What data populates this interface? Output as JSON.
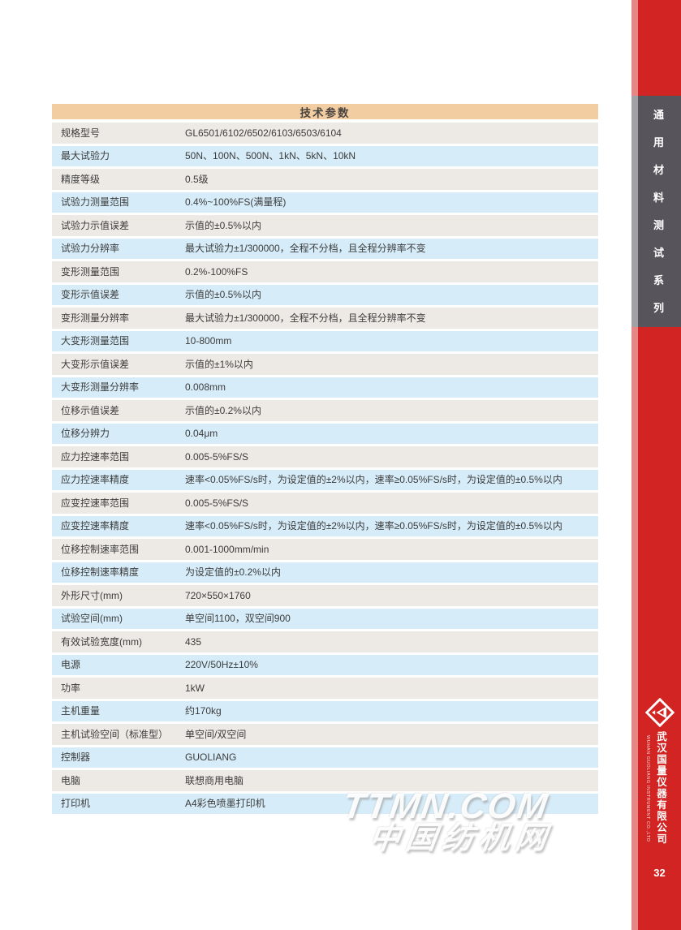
{
  "colors": {
    "sidebar_red": "#d22422",
    "sidebar_tab_gray": "#57545c",
    "table_header_bg": "#f2cda2",
    "row_odd_bg": "#edeae5",
    "row_even_bg": "#d6ecf8",
    "text": "#3c3c3c"
  },
  "table": {
    "title": "技术参数",
    "rows": [
      {
        "label": "规格型号",
        "value": "GL6501/6102/6502/6103/6503/6104"
      },
      {
        "label": "最大试验力",
        "value": "50N、100N、500N、1kN、5kN、10kN"
      },
      {
        "label": "精度等级",
        "value": "0.5级"
      },
      {
        "label": "试验力测量范围",
        "value": "0.4%~100%FS(满量程)"
      },
      {
        "label": "试验力示值误差",
        "value": "示值的±0.5%以内"
      },
      {
        "label": "试验力分辨率",
        "value": "最大试验力±1/300000，全程不分档，且全程分辨率不变"
      },
      {
        "label": "变形测量范围",
        "value": "0.2%-100%FS"
      },
      {
        "label": "变形示值误差",
        "value": "示值的±0.5%以内"
      },
      {
        "label": "变形测量分辨率",
        "value": "最大试验力±1/300000，全程不分档，且全程分辨率不变"
      },
      {
        "label": "大变形测量范围",
        "value": "10-800mm"
      },
      {
        "label": "大变形示值误差",
        "value": "示值的±1%以内"
      },
      {
        "label": "大变形测量分辨率",
        "value": "0.008mm"
      },
      {
        "label": "位移示值误差",
        "value": "示值的±0.2%以内"
      },
      {
        "label": "位移分辨力",
        "value": "0.04μm"
      },
      {
        "label": "应力控速率范围",
        "value": "0.005-5%FS/S"
      },
      {
        "label": "应力控速率精度",
        "value": "速率<0.05%FS/s时，为设定值的±2%以内，速率≥0.05%FS/s时，为设定值的±0.5%以内"
      },
      {
        "label": "应变控速率范围",
        "value": "0.005-5%FS/S"
      },
      {
        "label": "应变控速率精度",
        "value": "速率<0.05%FS/s时，为设定值的±2%以内，速率≥0.05%FS/s时，为设定值的±0.5%以内"
      },
      {
        "label": "位移控制速率范围",
        "value": "0.001-1000mm/min"
      },
      {
        "label": "位移控制速率精度",
        "value": "为设定值的±0.2%以内"
      },
      {
        "label": "外形尺寸(mm)",
        "value": "720×550×1760"
      },
      {
        "label": "试验空间(mm)",
        "value": "单空间1100，双空间900"
      },
      {
        "label": "有效试验宽度(mm)",
        "value": "435"
      },
      {
        "label": "电源",
        "value": "220V/50Hz±10%"
      },
      {
        "label": "功率",
        "value": "1kW"
      },
      {
        "label": "主机重量",
        "value": "约170kg"
      },
      {
        "label": "主机试验空间（标准型）",
        "value": "单空间/双空间"
      },
      {
        "label": "控制器",
        "value": "GUOLIANG"
      },
      {
        "label": "电脑",
        "value": "联想商用电脑"
      },
      {
        "label": "打印机",
        "value": "A4彩色喷墨打印机"
      }
    ]
  },
  "sidebar": {
    "series_vertical_label": "通用材料测试系列",
    "logo_icon": "diamond-arrow-logo",
    "company_cn": "武汉国量仪器有限公司",
    "company_en": "WUHAN GUOLIANG INSTRUMENT CO.,LTD",
    "page_number": "32"
  },
  "watermark": {
    "line1": "TTMN.COM",
    "line2": "中国纺机网"
  }
}
